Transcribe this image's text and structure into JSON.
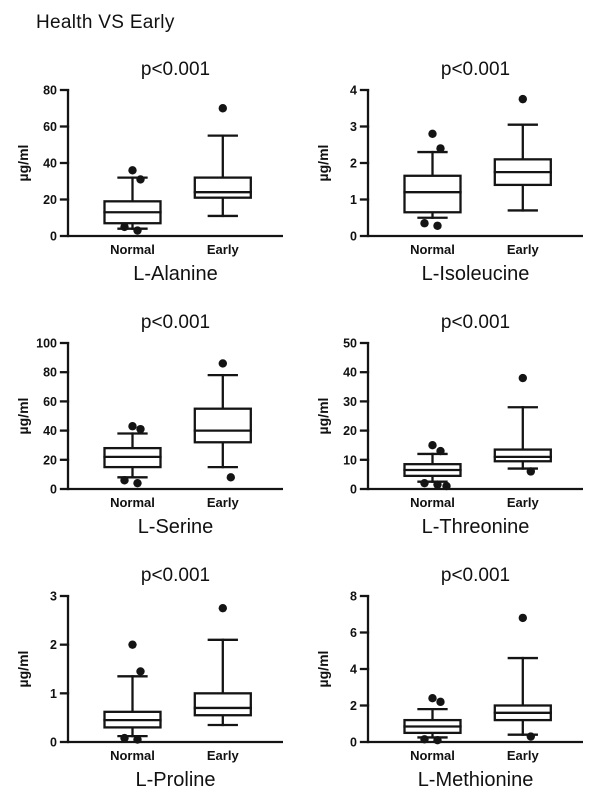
{
  "title": "Health VS Early",
  "chart_data": [
    {
      "type": "box",
      "title": "L-Alanine",
      "p_label": "p<0.001",
      "ylabel": "µg/ml",
      "ylim": [
        0,
        80
      ],
      "yticks": [
        0,
        20,
        40,
        60,
        80
      ],
      "categories": [
        "Normal",
        "Early"
      ],
      "boxes": [
        {
          "category": "Normal",
          "whisker_low": 4,
          "q1": 7,
          "median": 13,
          "q3": 19,
          "whisker_high": 32,
          "outliers": [
            36,
            31,
            5,
            3
          ]
        },
        {
          "category": "Early",
          "whisker_low": 11,
          "q1": 21,
          "median": 24,
          "q3": 32,
          "whisker_high": 55,
          "outliers": [
            70
          ]
        }
      ]
    },
    {
      "type": "box",
      "title": "L-Isoleucine",
      "p_label": "p<0.001",
      "ylabel": "µg/ml",
      "ylim": [
        0,
        4
      ],
      "yticks": [
        0,
        1,
        2,
        3,
        4
      ],
      "categories": [
        "Normal",
        "Early"
      ],
      "boxes": [
        {
          "category": "Normal",
          "whisker_low": 0.5,
          "q1": 0.65,
          "median": 1.2,
          "q3": 1.65,
          "whisker_high": 2.3,
          "outliers": [
            2.8,
            2.4,
            0.35,
            0.28
          ]
        },
        {
          "category": "Early",
          "whisker_low": 0.7,
          "q1": 1.4,
          "median": 1.75,
          "q3": 2.1,
          "whisker_high": 3.05,
          "outliers": [
            3.75
          ]
        }
      ]
    },
    {
      "type": "box",
      "title": "L-Serine",
      "p_label": "p<0.001",
      "ylabel": "µg/ml",
      "ylim": [
        0,
        100
      ],
      "yticks": [
        0,
        20,
        40,
        60,
        80,
        100
      ],
      "categories": [
        "Normal",
        "Early"
      ],
      "boxes": [
        {
          "category": "Normal",
          "whisker_low": 8,
          "q1": 15,
          "median": 22,
          "q3": 28,
          "whisker_high": 38,
          "outliers": [
            43,
            41,
            6,
            4
          ]
        },
        {
          "category": "Early",
          "whisker_low": 15,
          "q1": 32,
          "median": 40,
          "q3": 55,
          "whisker_high": 78,
          "outliers": [
            86,
            8
          ]
        }
      ]
    },
    {
      "type": "box",
      "title": "L-Threonine",
      "p_label": "p<0.001",
      "ylabel": "µg/ml",
      "ylim": [
        0,
        50
      ],
      "yticks": [
        0,
        10,
        20,
        30,
        40,
        50
      ],
      "categories": [
        "Normal",
        "Early"
      ],
      "boxes": [
        {
          "category": "Normal",
          "whisker_low": 2.5,
          "q1": 4.5,
          "median": 6.5,
          "q3": 8.5,
          "whisker_high": 12,
          "outliers": [
            15,
            13,
            2,
            1.5,
            1
          ]
        },
        {
          "category": "Early",
          "whisker_low": 7,
          "q1": 9.5,
          "median": 11,
          "q3": 13.5,
          "whisker_high": 28,
          "outliers": [
            38,
            6
          ]
        }
      ]
    },
    {
      "type": "box",
      "title": "L-Proline",
      "p_label": "p<0.001",
      "ylabel": "µg/ml",
      "ylim": [
        0,
        3
      ],
      "yticks": [
        0,
        1,
        2,
        3
      ],
      "categories": [
        "Normal",
        "Early"
      ],
      "boxes": [
        {
          "category": "Normal",
          "whisker_low": 0.12,
          "q1": 0.3,
          "median": 0.45,
          "q3": 0.62,
          "whisker_high": 1.35,
          "outliers": [
            2.0,
            1.45,
            0.08,
            0.05
          ]
        },
        {
          "category": "Early",
          "whisker_low": 0.35,
          "q1": 0.55,
          "median": 0.7,
          "q3": 1.0,
          "whisker_high": 2.1,
          "outliers": [
            2.75
          ]
        }
      ]
    },
    {
      "type": "box",
      "title": "L-Methionine",
      "p_label": "p<0.001",
      "ylabel": "µg/ml",
      "ylim": [
        0,
        8
      ],
      "yticks": [
        0,
        2,
        4,
        6,
        8
      ],
      "categories": [
        "Normal",
        "Early"
      ],
      "boxes": [
        {
          "category": "Normal",
          "whisker_low": 0.25,
          "q1": 0.5,
          "median": 0.85,
          "q3": 1.2,
          "whisker_high": 1.8,
          "outliers": [
            2.4,
            2.2,
            0.15,
            0.1
          ]
        },
        {
          "category": "Early",
          "whisker_low": 0.4,
          "q1": 1.2,
          "median": 1.6,
          "q3": 2.0,
          "whisker_high": 4.6,
          "outliers": [
            6.8,
            0.3
          ]
        }
      ]
    }
  ]
}
